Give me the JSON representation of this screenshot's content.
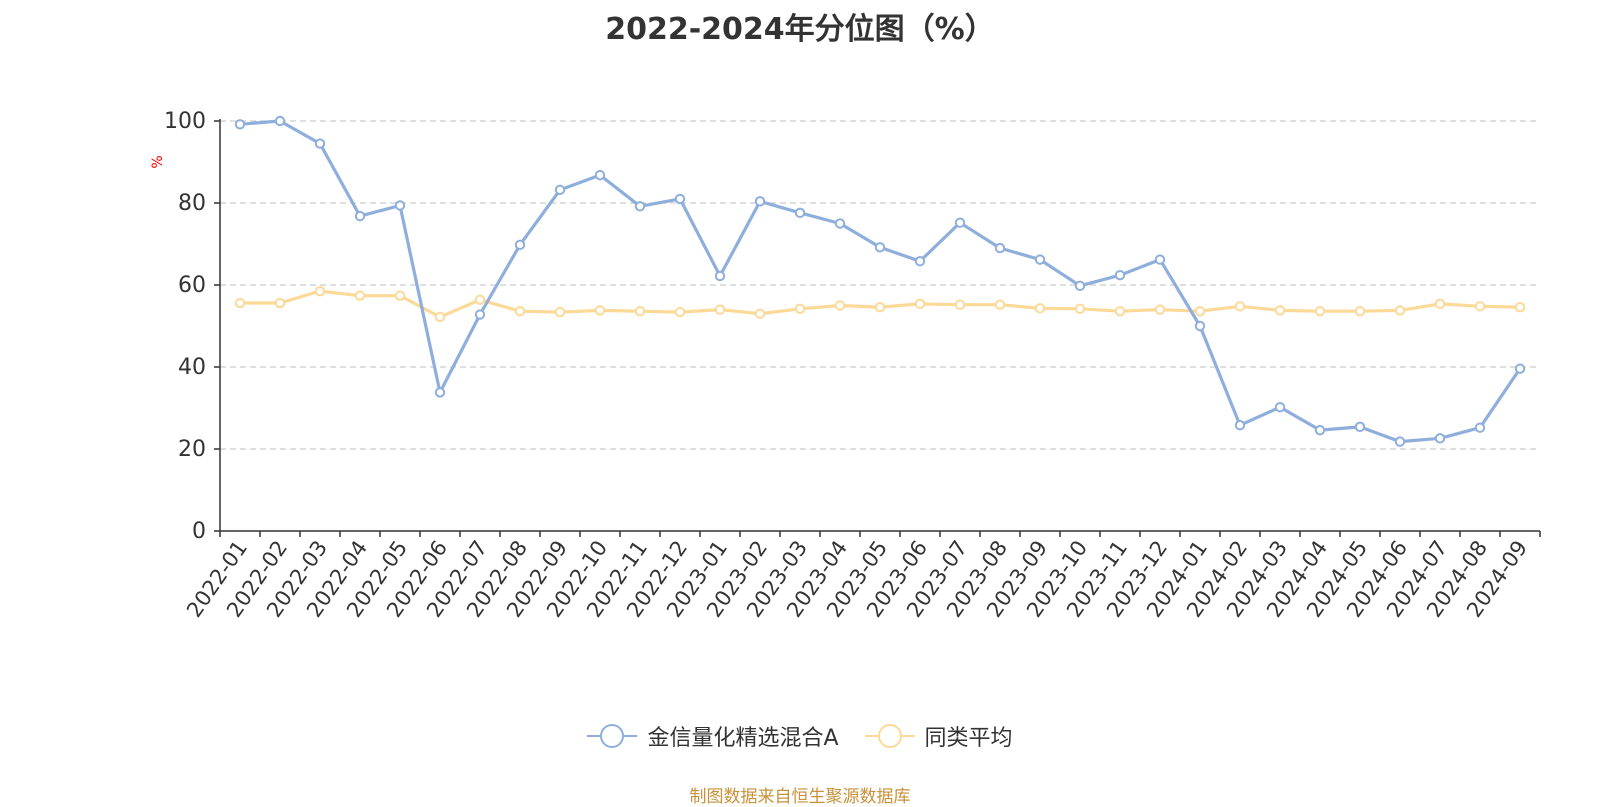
{
  "title": "2022-2024年分位图（%）",
  "source_note": "制图数据来自恒生聚源数据库",
  "colors": {
    "series_a": "#8eaedc",
    "series_b": "#fdd998",
    "axis": "#333333",
    "grid": "#cccccc",
    "ylabel": "#ff0000",
    "source": "#c8913a"
  },
  "chart_data": {
    "type": "line",
    "title": "2022-2024年分位图（%）",
    "xlabel": "",
    "ylabel": "%",
    "ylim": [
      0,
      100
    ],
    "yticks": [
      0,
      20,
      40,
      60,
      80,
      100
    ],
    "grid": "horizontal dashed",
    "legend_position": "bottom-center",
    "categories": [
      "2022-01",
      "2022-02",
      "2022-03",
      "2022-04",
      "2022-05",
      "2022-06",
      "2022-07",
      "2022-08",
      "2022-09",
      "2022-10",
      "2022-11",
      "2022-12",
      "2023-01",
      "2023-02",
      "2023-03",
      "2023-04",
      "2023-05",
      "2023-06",
      "2023-07",
      "2023-08",
      "2023-09",
      "2023-10",
      "2023-11",
      "2023-12",
      "2024-01",
      "2024-02",
      "2024-03",
      "2024-04",
      "2024-05",
      "2024-06",
      "2024-07",
      "2024-08",
      "2024-09"
    ],
    "series": [
      {
        "name": "金信量化精选混合A",
        "color": "#8eaedc",
        "values": [
          99.2,
          100,
          94.5,
          76.8,
          79.4,
          33.8,
          52.8,
          69.8,
          83.2,
          86.8,
          79.2,
          81,
          62.2,
          80.4,
          77.6,
          75,
          69.2,
          65.8,
          75.2,
          69,
          66.2,
          59.8,
          62.4,
          66.2,
          50,
          25.8,
          30.2,
          24.6,
          25.4,
          21.8,
          22.6,
          25.2,
          39.6
        ]
      },
      {
        "name": "同类平均",
        "color": "#fdd998",
        "values": [
          55.6,
          55.6,
          58.5,
          57.4,
          57.4,
          52.2,
          56.4,
          53.6,
          53.4,
          53.8,
          53.6,
          53.4,
          54,
          53,
          54.2,
          55,
          54.6,
          55.4,
          55.2,
          55.2,
          54.3,
          54.2,
          53.6,
          54,
          53.6,
          54.8,
          53.8,
          53.6,
          53.6,
          53.8,
          55.4,
          54.8,
          54.6
        ]
      }
    ]
  }
}
